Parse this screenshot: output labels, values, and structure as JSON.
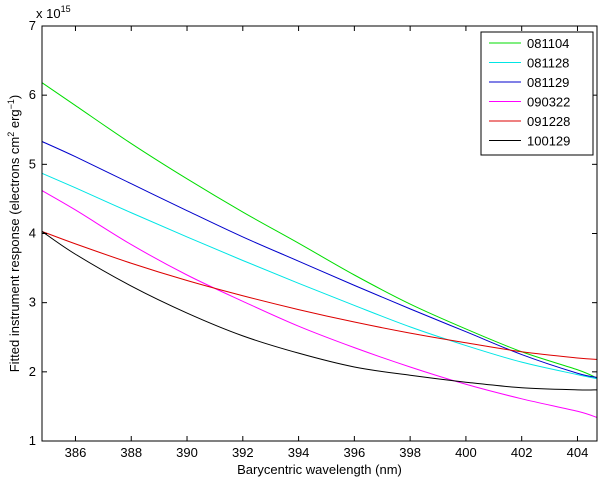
{
  "chart_data": {
    "type": "line",
    "title": "",
    "xlabel": "Barycentric wavelength (nm)",
    "ylabel_parts": {
      "before": "Fitted instrument response (electrons cm",
      "sup1": "2",
      "middle": " erg",
      "sup2": "−1",
      "after": ")"
    },
    "y_multiplier": {
      "base": "x 10",
      "exponent": "15"
    },
    "xlim": [
      384.8,
      404.7
    ],
    "ylim": [
      1,
      7
    ],
    "xticks": [
      386,
      388,
      390,
      392,
      394,
      396,
      398,
      400,
      402,
      404
    ],
    "yticks": [
      1,
      2,
      3,
      4,
      5,
      6,
      7
    ],
    "grid": false,
    "legend": {
      "position": "top-right"
    },
    "x": [
      384.8,
      386,
      388,
      390,
      392,
      394,
      396,
      398,
      400,
      402,
      404,
      404.7
    ],
    "series": [
      {
        "name": "081104",
        "color": "#00dd00",
        "values": [
          6.18,
          5.85,
          5.3,
          4.79,
          4.31,
          3.86,
          3.4,
          2.98,
          2.62,
          2.29,
          2.03,
          1.91
        ]
      },
      {
        "name": "081128",
        "color": "#00e5e5",
        "values": [
          4.87,
          4.66,
          4.3,
          3.95,
          3.61,
          3.28,
          2.96,
          2.65,
          2.38,
          2.14,
          1.96,
          1.9
        ]
      },
      {
        "name": "081129",
        "color": "#0000cc",
        "values": [
          5.33,
          5.11,
          4.72,
          4.33,
          3.95,
          3.6,
          3.25,
          2.91,
          2.58,
          2.25,
          1.98,
          1.92
        ]
      },
      {
        "name": "090322",
        "color": "#ff00ff",
        "values": [
          4.62,
          4.34,
          3.84,
          3.4,
          3.02,
          2.66,
          2.35,
          2.07,
          1.82,
          1.61,
          1.43,
          1.34
        ]
      },
      {
        "name": "091228",
        "color": "#dd0000",
        "values": [
          4.03,
          3.85,
          3.57,
          3.32,
          3.1,
          2.9,
          2.72,
          2.56,
          2.42,
          2.29,
          2.2,
          2.18
        ]
      },
      {
        "name": "100129",
        "color": "#000000",
        "values": [
          4.03,
          3.7,
          3.24,
          2.85,
          2.52,
          2.27,
          2.07,
          1.95,
          1.85,
          1.77,
          1.74,
          1.74
        ]
      }
    ]
  }
}
